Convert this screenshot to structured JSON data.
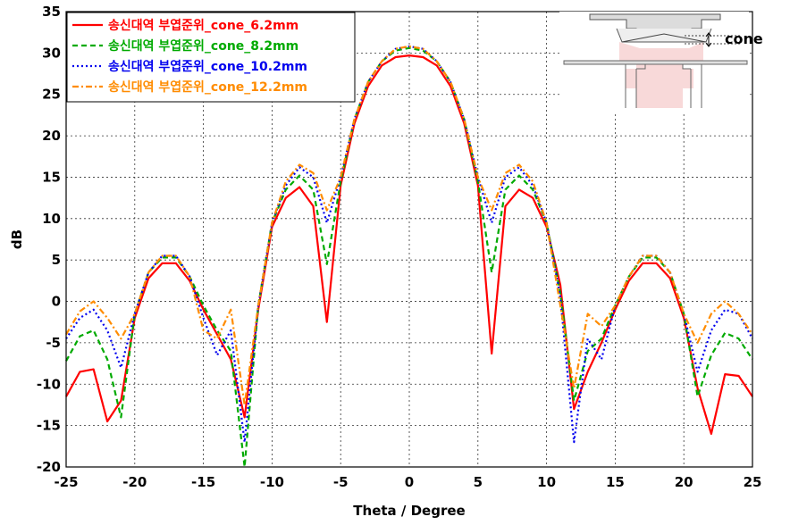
{
  "chart_data": {
    "type": "line",
    "title": "",
    "xlabel": "Theta / Degree",
    "ylabel": "dB",
    "xlim": [
      -25,
      25
    ],
    "ylim": [
      -20,
      35
    ],
    "xticks": [
      -25,
      -20,
      -15,
      -10,
      -5,
      0,
      5,
      10,
      15,
      20,
      25
    ],
    "yticks": [
      -20,
      -15,
      -10,
      -5,
      0,
      5,
      10,
      15,
      20,
      25,
      30,
      35
    ],
    "grid": true,
    "legend_position": "top-left",
    "x": [
      -25,
      -24,
      -23,
      -22,
      -21,
      -20,
      -19,
      -18,
      -17,
      -16,
      -15,
      -14,
      -13,
      -12,
      -11,
      -10,
      -9,
      -8,
      -7,
      -6,
      -5,
      -4,
      -3,
      -2,
      -1,
      0,
      1,
      2,
      3,
      4,
      5,
      6,
      7,
      8,
      9,
      10,
      11,
      12,
      13,
      14,
      15,
      16,
      17,
      18,
      19,
      20,
      21,
      22,
      23,
      24,
      25
    ],
    "series": [
      {
        "name": "송신대역 부엽준위_cone_6.2mm",
        "color": "#ff0000",
        "dash": "solid",
        "values": [
          -11.5,
          -8.5,
          -8.2,
          -14.5,
          -12,
          -2,
          2.8,
          4.6,
          4.6,
          2.5,
          -1,
          -4,
          -7,
          -14,
          -1,
          9,
          12.5,
          13.8,
          11.5,
          -2.5,
          14,
          21.5,
          26,
          28.5,
          29.5,
          29.7,
          29.5,
          28.5,
          26,
          21.5,
          14,
          -6.3,
          11.5,
          13.5,
          12.5,
          9,
          2,
          -13,
          -8.5,
          -5,
          -1,
          2.5,
          4.6,
          4.6,
          2.8,
          -2,
          -10.5,
          -16,
          -8.8,
          -9,
          -11.5
        ]
      },
      {
        "name": "송신대역 부엽준위_cone_8.2mm",
        "color": "#00aa00",
        "dash": "6,4",
        "values": [
          -7.2,
          -4.2,
          -3.5,
          -7,
          -14,
          -1.5,
          3.5,
          5.3,
          5.3,
          3,
          -0.5,
          -3.5,
          -6,
          -20,
          -0.5,
          9.5,
          13.5,
          15.2,
          13.5,
          4.5,
          14.5,
          22,
          26.5,
          29,
          30.3,
          30.6,
          30.3,
          29,
          26.5,
          22,
          14.5,
          3.5,
          13.5,
          15.2,
          13.5,
          9.5,
          1,
          -12,
          -6,
          -4.5,
          -0.5,
          3,
          5.3,
          5.3,
          3.5,
          -1.5,
          -11.5,
          -6.5,
          -3.8,
          -4.5,
          -7
        ]
      },
      {
        "name": "송신대역 부엽준위_cone_10.2mm",
        "color": "#0000ee",
        "dash": "2,3",
        "values": [
          -4.5,
          -2,
          -1,
          -3.5,
          -8,
          -1.5,
          3.5,
          5.5,
          5.5,
          3,
          -2,
          -6.5,
          -3.5,
          -17,
          -0.5,
          9.5,
          14,
          16.2,
          15,
          9.5,
          15,
          22,
          26.5,
          29,
          30.5,
          30.8,
          30.5,
          29,
          26.5,
          22,
          15,
          9.5,
          15,
          16.2,
          14,
          9.5,
          0.5,
          -17,
          -4.5,
          -7,
          -0.5,
          3,
          5.5,
          5.5,
          3.5,
          -1.5,
          -8.5,
          -3.5,
          -1,
          -1.5,
          -4.5
        ]
      },
      {
        "name": "송신대역 부엽준위_cone_12.2mm",
        "color": "#ff8c00",
        "dash": "7,3,2,3",
        "values": [
          -4,
          -1.2,
          0,
          -2,
          -4.5,
          -1.5,
          3.5,
          5.5,
          5.5,
          3,
          -3.5,
          -4.5,
          -1,
          -12.5,
          -0.5,
          9.5,
          14.5,
          16.5,
          15.5,
          11,
          15,
          22,
          26.5,
          29,
          30.5,
          30.8,
          30.5,
          29,
          26.5,
          22,
          15,
          11,
          15.5,
          16.5,
          14.5,
          9.5,
          -0.5,
          -10.5,
          -1.5,
          -3,
          -0.5,
          3,
          5.5,
          5.5,
          3.5,
          -1.5,
          -5,
          -1.5,
          0,
          -1.5,
          -4
        ]
      }
    ]
  },
  "inset": {
    "label": "cone"
  }
}
